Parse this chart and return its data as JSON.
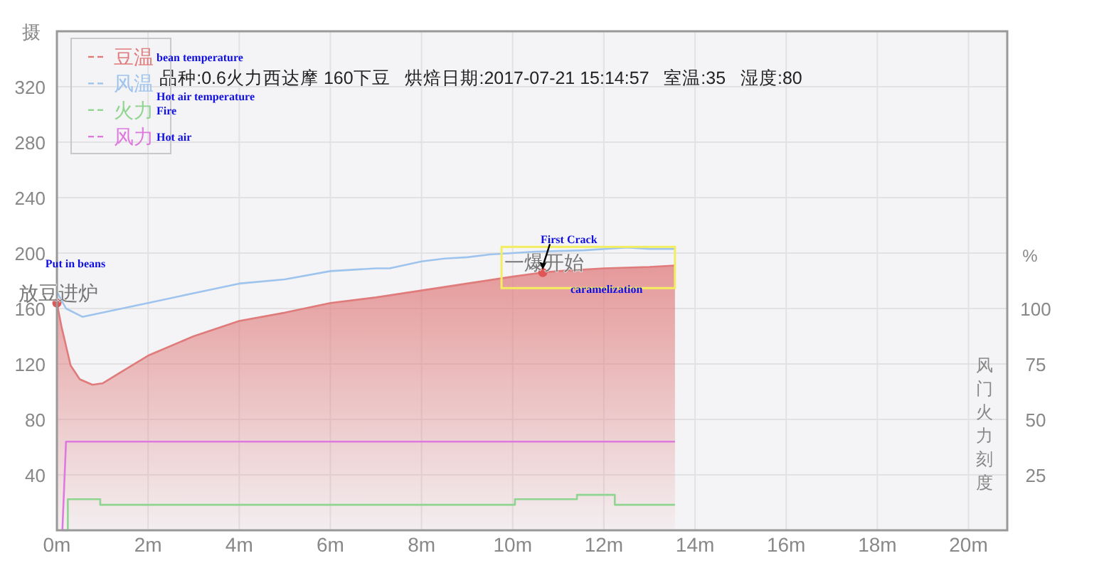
{
  "chart_data": {
    "type": "line",
    "title": "品种:0.6火力西达摩 160下豆   烘焙日期:2017-07-21 15:14:57   室温:35   湿度:80",
    "ylabel": "摄",
    "y2label": "%",
    "xlim": [
      0,
      20.85
    ],
    "xticks": [
      {
        "value": 0,
        "label": "0m"
      },
      {
        "value": 2,
        "label": "2m"
      },
      {
        "value": 4,
        "label": "4m"
      },
      {
        "value": 6,
        "label": "6m"
      },
      {
        "value": 8,
        "label": "8m"
      },
      {
        "value": 10,
        "label": "10m"
      },
      {
        "value": 12,
        "label": "12m"
      },
      {
        "value": 14,
        "label": "14m"
      },
      {
        "value": 16,
        "label": "16m"
      },
      {
        "value": 18,
        "label": "18m"
      },
      {
        "value": 20,
        "label": "20m"
      }
    ],
    "ylim": [
      0,
      360
    ],
    "yticks": [
      40,
      80,
      120,
      160,
      200,
      240,
      280,
      320
    ],
    "y2lim": [
      0,
      225
    ],
    "y2ticks": [
      25,
      50,
      75,
      100
    ],
    "grid": true,
    "legend": "top left",
    "series": [
      {
        "name": "豆温",
        "type": "area",
        "color": "#e07b7b",
        "x": [
          0,
          0.1,
          0.3,
          0.5,
          0.78,
          1.0,
          1.35,
          2,
          3,
          4,
          5,
          6,
          7,
          8,
          9,
          10,
          10.66,
          11,
          12,
          13,
          13.56
        ],
        "values": [
          164,
          147,
          119,
          109,
          105,
          106,
          113,
          126,
          140,
          151,
          157,
          164,
          168,
          173,
          178,
          183,
          186,
          187,
          189,
          190,
          191
        ]
      },
      {
        "name": "风温",
        "color": "#9ec4ee",
        "x": [
          0,
          0.2,
          0.56,
          1,
          2,
          3,
          4,
          5,
          6,
          7,
          7.3,
          8,
          8.5,
          9,
          9.5,
          10,
          10.5,
          11.56,
          12.5,
          13,
          13.56
        ],
        "values": [
          172,
          160,
          154,
          157,
          164,
          171,
          178,
          181,
          187,
          189,
          189,
          194,
          196,
          197,
          199,
          200,
          201,
          202,
          204,
          203,
          203
        ]
      },
      {
        "name": "火力",
        "type": "step",
        "axis": "y2",
        "color": "#8fd48f",
        "x": [
          0.14,
          0.24,
          0.95,
          10.05,
          11.41,
          12.24,
          13.56
        ],
        "values": [
          0,
          14,
          11.5,
          14,
          16,
          11.5,
          11.5
        ]
      },
      {
        "name": "风力",
        "axis": "y2",
        "color": "#de7ade",
        "x": [
          0.12,
          0.2,
          13.56
        ],
        "values": [
          0,
          40,
          40
        ]
      },
      {
        "type": "scatter",
        "color": "#e05555",
        "x": [
          0,
          10.66
        ],
        "values": [
          164,
          186
        ]
      }
    ],
    "annotations": [
      "bean temperature",
      "Hot air temperature",
      "Fire",
      "Hot air",
      {
        "text": "放豆进炉",
        "x": 0,
        "y": 164
      },
      "Put in beans",
      {
        "text": "一爆开始",
        "x": 10.66,
        "y": 186
      },
      "First Crack",
      "caramelization",
      "风门火力刻度"
    ]
  }
}
